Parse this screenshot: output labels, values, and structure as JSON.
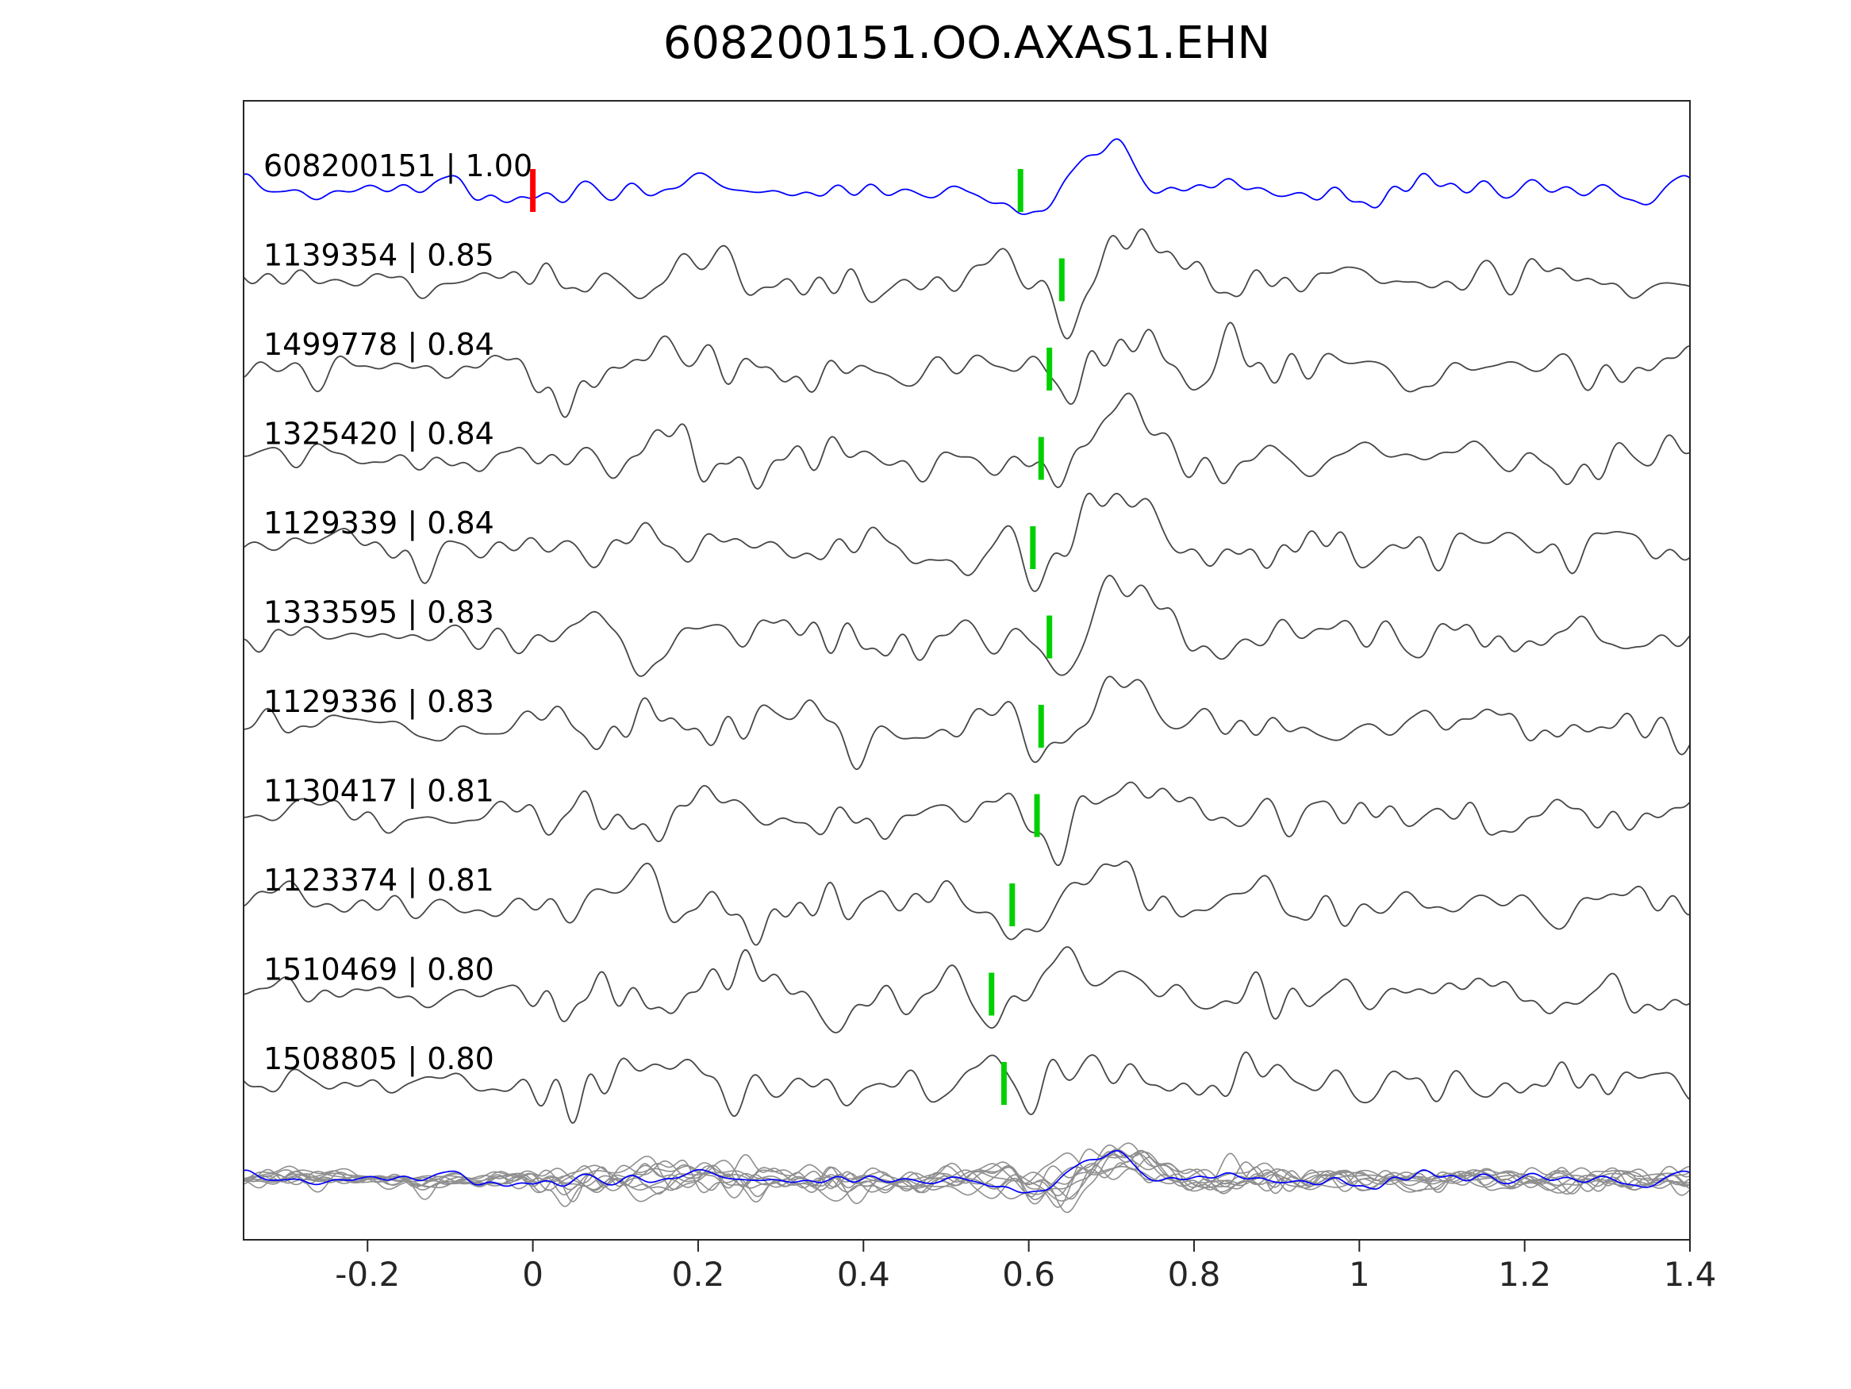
{
  "title": "608200151.OO.AXAS1.EHN",
  "chart_data": {
    "type": "line",
    "title": "608200151.OO.AXAS1.EHN",
    "xlabel": "",
    "ylabel": "",
    "grid": false,
    "legend": "none",
    "xlim": [
      -0.35,
      1.4
    ],
    "x_ticks": [
      -0.2,
      0,
      0.2,
      0.4,
      0.6,
      0.8,
      1,
      1.2,
      1.4
    ],
    "x_tick_labels": [
      "-0.2",
      "0",
      "0.2",
      "0.4",
      "0.6",
      "0.8",
      "1",
      "1.2",
      "1.4"
    ],
    "colors": {
      "template_trace": "#0000ff",
      "detection_trace": "#464646",
      "overlay_trace": "#8f8f8f",
      "template_pick": "#ff0000",
      "detection_pick": "#00d000",
      "axis": "#262626",
      "text": "#000000"
    },
    "traces": [
      {
        "event_id": "608200151",
        "correlation": "1.00",
        "label": "608200151 | 1.00",
        "color": "#0000ff",
        "picks": [
          {
            "time": 0.0,
            "color": "#ff0000"
          },
          {
            "time": 0.59,
            "color": "#00d000"
          }
        ]
      },
      {
        "event_id": "1139354",
        "correlation": "0.85",
        "label": "1139354 | 0.85",
        "color": "#464646",
        "picks": [
          {
            "time": 0.64,
            "color": "#00d000"
          }
        ]
      },
      {
        "event_id": "1499778",
        "correlation": "0.84",
        "label": "1499778 | 0.84",
        "color": "#464646",
        "picks": [
          {
            "time": 0.625,
            "color": "#00d000"
          }
        ]
      },
      {
        "event_id": "1325420",
        "correlation": "0.84",
        "label": "1325420 | 0.84",
        "color": "#464646",
        "picks": [
          {
            "time": 0.615,
            "color": "#00d000"
          }
        ]
      },
      {
        "event_id": "1129339",
        "correlation": "0.84",
        "label": "1129339 | 0.84",
        "color": "#464646",
        "picks": [
          {
            "time": 0.605,
            "color": "#00d000"
          }
        ]
      },
      {
        "event_id": "1333595",
        "correlation": "0.83",
        "label": "1333595 | 0.83",
        "color": "#464646",
        "picks": [
          {
            "time": 0.625,
            "color": "#00d000"
          }
        ]
      },
      {
        "event_id": "1129336",
        "correlation": "0.83",
        "label": "1129336 | 0.83",
        "color": "#464646",
        "picks": [
          {
            "time": 0.615,
            "color": "#00d000"
          }
        ]
      },
      {
        "event_id": "1130417",
        "correlation": "0.81",
        "label": "1130417 | 0.81",
        "color": "#464646",
        "picks": [
          {
            "time": 0.61,
            "color": "#00d000"
          }
        ]
      },
      {
        "event_id": "1123374",
        "correlation": "0.81",
        "label": "1123374 | 0.81",
        "color": "#464646",
        "picks": [
          {
            "time": 0.58,
            "color": "#00d000"
          }
        ]
      },
      {
        "event_id": "1510469",
        "correlation": "0.80",
        "label": "1510469 | 0.80",
        "color": "#464646",
        "picks": [
          {
            "time": 0.555,
            "color": "#00d000"
          }
        ]
      },
      {
        "event_id": "1508805",
        "correlation": "0.80",
        "label": "1508805 | 0.80",
        "color": "#464646",
        "picks": [
          {
            "time": 0.57,
            "color": "#00d000"
          }
        ]
      }
    ],
    "overlay_row": {
      "description": "all traces superimposed",
      "gray_color": "#8f8f8f",
      "template_color": "#0000ff"
    }
  }
}
